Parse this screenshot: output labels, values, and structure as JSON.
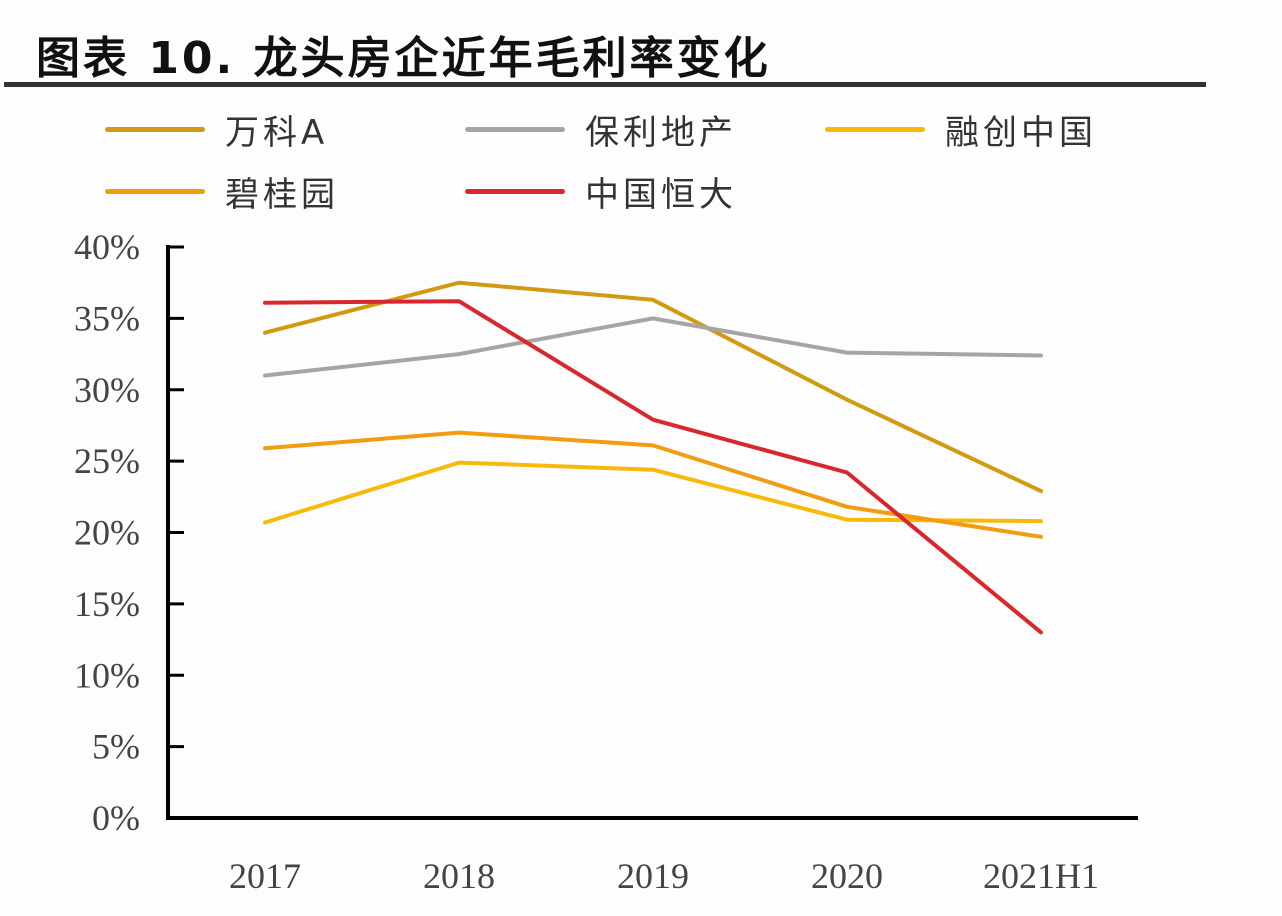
{
  "title": "图表 10. 龙头房企近年毛利率变化",
  "chart_data": {
    "type": "line",
    "title": "图表 10. 龙头房企近年毛利率变化",
    "xlabel": "",
    "ylabel": "",
    "categories": [
      "2017",
      "2018",
      "2019",
      "2020",
      "2021H1"
    ],
    "ylim": [
      0,
      40
    ],
    "yticks": [
      0,
      5,
      10,
      15,
      20,
      25,
      30,
      35,
      40
    ],
    "ytick_labels": [
      "0%",
      "5%",
      "10%",
      "15%",
      "20%",
      "25%",
      "30%",
      "35%",
      "40%"
    ],
    "grid": false,
    "legend_position": "top",
    "series": [
      {
        "name": "万科A",
        "color": "#D19A10",
        "values": [
          34.0,
          37.5,
          36.3,
          29.3,
          22.9
        ]
      },
      {
        "name": "保利地产",
        "color": "#A5A5A5",
        "values": [
          31.0,
          32.5,
          35.0,
          32.6,
          32.4
        ]
      },
      {
        "name": "融创中国",
        "color": "#F7BA0B",
        "values": [
          20.7,
          24.9,
          24.4,
          20.9,
          20.8
        ]
      },
      {
        "name": "碧桂园",
        "color": "#F29C12",
        "values": [
          25.9,
          27.0,
          26.1,
          21.8,
          19.7
        ]
      },
      {
        "name": "中国恒大",
        "color": "#D9272E",
        "values": [
          36.1,
          36.2,
          27.9,
          24.2,
          13.0
        ]
      }
    ]
  }
}
